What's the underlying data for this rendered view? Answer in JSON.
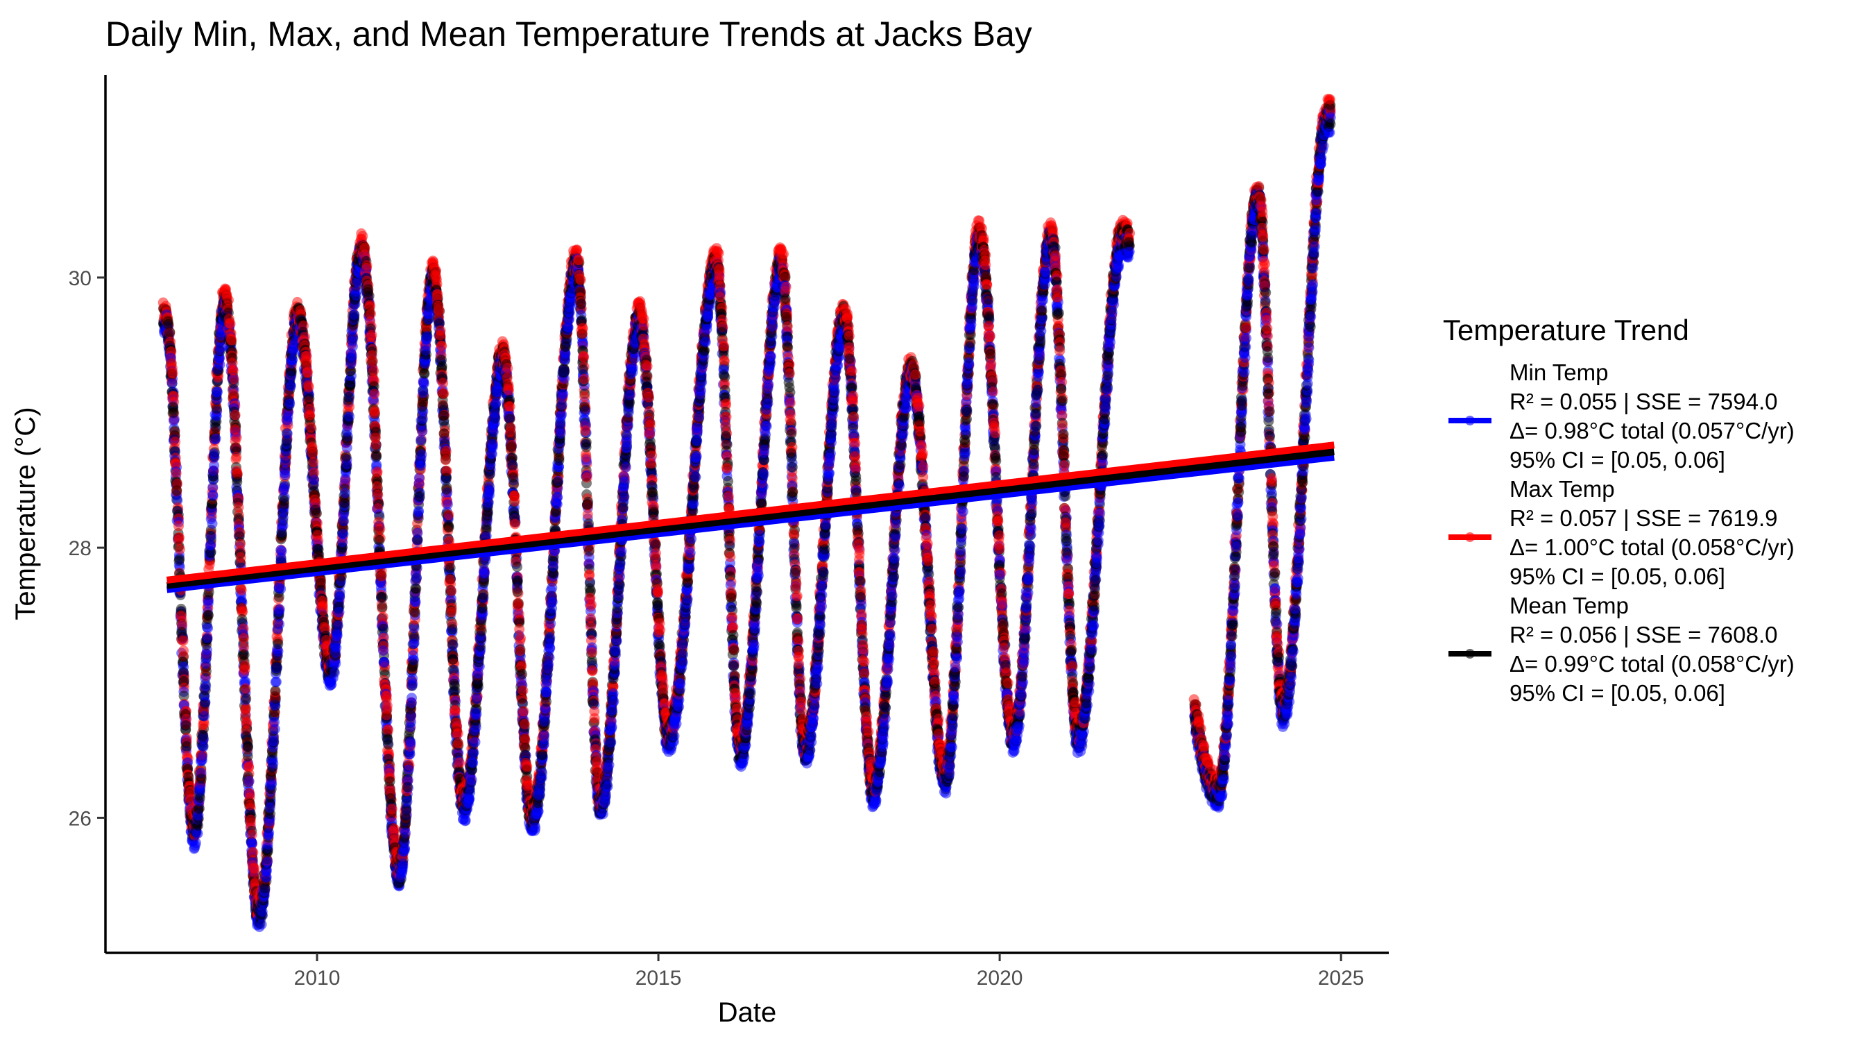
{
  "chart_data": {
    "type": "scatter",
    "title": "Daily Min, Max, and Mean Temperature Trends at Jacks Bay",
    "xlabel": "Date",
    "ylabel": "Temperature (°C)",
    "xlim": [
      2006.9,
      2025.7
    ],
    "ylim": [
      25.0,
      31.5
    ],
    "x_ticks": [
      2010,
      2015,
      2020,
      2025
    ],
    "x_tick_labels": [
      "2010",
      "2015",
      "2020",
      "2025"
    ],
    "y_ticks": [
      26,
      28,
      30
    ],
    "y_tick_labels": [
      "26",
      "28",
      "30"
    ],
    "grid": false,
    "legend_position": "right",
    "legend_title": "Temperature Trend",
    "series": [
      {
        "name": "Min Temp",
        "color": "#0000ff",
        "legend_lines": [
          "Min Temp",
          "R² = 0.055 | SSE = 7594.0",
          "Δ= 0.98°C total (0.057°C/yr)",
          "95% CI = [0.05, 0.06]"
        ],
        "trend": {
          "x": [
            2007.8,
            2024.9
          ],
          "y": [
            27.69,
            28.67
          ]
        },
        "phase": -0.04
      },
      {
        "name": "Max Temp",
        "color": "#ff0000",
        "legend_lines": [
          "Max Temp",
          "R² = 0.057 | SSE = 7619.9",
          "Δ= 1.00°C total (0.058°C/yr)",
          "95% CI = [0.05, 0.06]"
        ],
        "trend": {
          "x": [
            2007.8,
            2024.9
          ],
          "y": [
            27.76,
            28.76
          ]
        },
        "phase": 0.04
      },
      {
        "name": "Mean Temp",
        "color": "#000000",
        "legend_lines": [
          "Mean Temp",
          "R² = 0.056 | SSE = 7608.0",
          "Δ= 0.99°C total (0.058°C/yr)",
          "95% CI = [0.05, 0.06]"
        ],
        "trend": {
          "x": [
            2007.8,
            2024.9
          ],
          "y": [
            27.72,
            28.71
          ]
        },
        "phase": 0.0
      }
    ],
    "seasonal_envelope": {
      "date_range": [
        2007.75,
        2024.85
      ],
      "gap": [
        2021.9,
        2022.85
      ],
      "peaks": [
        [
          2007.78,
          29.7
        ],
        [
          2008.65,
          29.8
        ],
        [
          2009.72,
          29.7
        ],
        [
          2010.65,
          30.2
        ],
        [
          2011.7,
          30.0
        ],
        [
          2012.72,
          29.4
        ],
        [
          2013.8,
          30.1
        ],
        [
          2014.72,
          29.7
        ],
        [
          2015.85,
          30.1
        ],
        [
          2016.8,
          30.1
        ],
        [
          2017.72,
          29.7
        ],
        [
          2018.7,
          29.3
        ],
        [
          2019.7,
          30.3
        ],
        [
          2020.75,
          30.3
        ],
        [
          2021.8,
          30.3
        ],
        [
          2023.78,
          30.6
        ],
        [
          2024.8,
          31.2
        ]
      ],
      "troughs": [
        [
          2008.2,
          25.9
        ],
        [
          2009.15,
          25.3
        ],
        [
          2010.2,
          27.1
        ],
        [
          2011.2,
          25.6
        ],
        [
          2012.15,
          26.1
        ],
        [
          2013.15,
          26.0
        ],
        [
          2014.15,
          26.1
        ],
        [
          2015.15,
          26.6
        ],
        [
          2016.2,
          26.5
        ],
        [
          2017.15,
          26.5
        ],
        [
          2018.15,
          26.2
        ],
        [
          2019.2,
          26.3
        ],
        [
          2020.2,
          26.6
        ],
        [
          2021.15,
          26.6
        ],
        [
          2023.2,
          26.2
        ],
        [
          2024.15,
          26.8
        ]
      ]
    }
  }
}
